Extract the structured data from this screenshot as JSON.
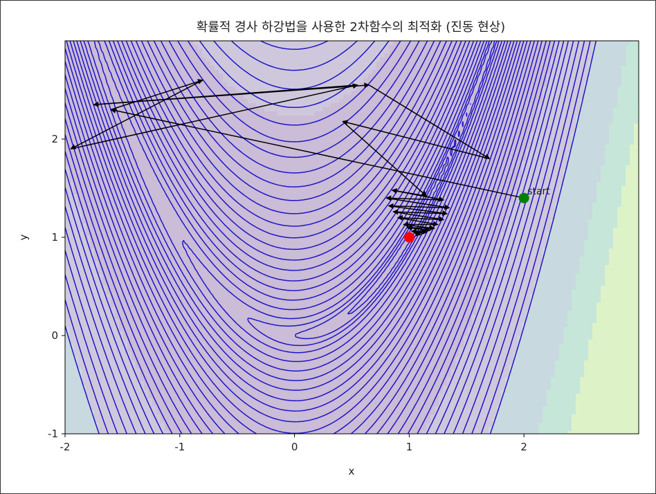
{
  "chart_data": {
    "type": "contour",
    "title": "확률적 경사 하강법을 사용한 2차함수의 최적화 (진동 현상)",
    "xlabel": "x",
    "ylabel": "y",
    "xlim": [
      -2,
      3
    ],
    "ylim": [
      -1,
      3
    ],
    "x_ticks": [
      "-2",
      "-1",
      "0",
      "1",
      "2"
    ],
    "y_ticks": [
      "-1",
      "0",
      "1",
      "2"
    ],
    "x_tick_values": [
      -2,
      -1,
      0,
      1,
      2
    ],
    "y_tick_values": [
      -1,
      0,
      1,
      2
    ],
    "function": "Rosenbrock: (1 - x)^2 + 100 (y - x^2)^2",
    "contour_levels": [
      0.3,
      1,
      2,
      4,
      8,
      14,
      22,
      32,
      45,
      60,
      78,
      100,
      125,
      155,
      190,
      230,
      275,
      330,
      390,
      460,
      540,
      630,
      730,
      850,
      990,
      1150,
      1330,
      1530
    ],
    "contour_color": "#1c14c8",
    "fill_colormap": [
      "#cbbcd7",
      "#cfc8dc",
      "#c9d9e0",
      "#c5e6d8",
      "#def2c8"
    ],
    "minimum": {
      "x": 1.0,
      "y": 1.0,
      "color": "#ff0000"
    },
    "start": {
      "x": 2.0,
      "y": 1.4,
      "label": "start",
      "color": "#008000"
    },
    "path": [
      [
        2.0,
        1.4
      ],
      [
        -1.6,
        2.3
      ],
      [
        -0.8,
        2.6
      ],
      [
        -1.95,
        1.9
      ],
      [
        0.55,
        2.55
      ],
      [
        -1.75,
        2.35
      ],
      [
        0.65,
        2.55
      ],
      [
        1.7,
        1.8
      ],
      [
        0.42,
        2.18
      ],
      [
        1.15,
        1.42
      ],
      [
        0.85,
        1.48
      ],
      [
        1.3,
        1.38
      ],
      [
        0.8,
        1.4
      ],
      [
        1.35,
        1.3
      ],
      [
        0.82,
        1.32
      ],
      [
        1.33,
        1.24
      ],
      [
        0.86,
        1.26
      ],
      [
        1.3,
        1.18
      ],
      [
        0.9,
        1.2
      ],
      [
        1.25,
        1.13
      ],
      [
        0.95,
        1.13
      ],
      [
        1.22,
        1.09
      ],
      [
        0.98,
        1.1
      ],
      [
        1.18,
        1.07
      ],
      [
        1.02,
        1.06
      ],
      [
        1.15,
        1.05
      ],
      [
        1.05,
        1.04
      ],
      [
        1.1,
        1.03
      ]
    ]
  }
}
